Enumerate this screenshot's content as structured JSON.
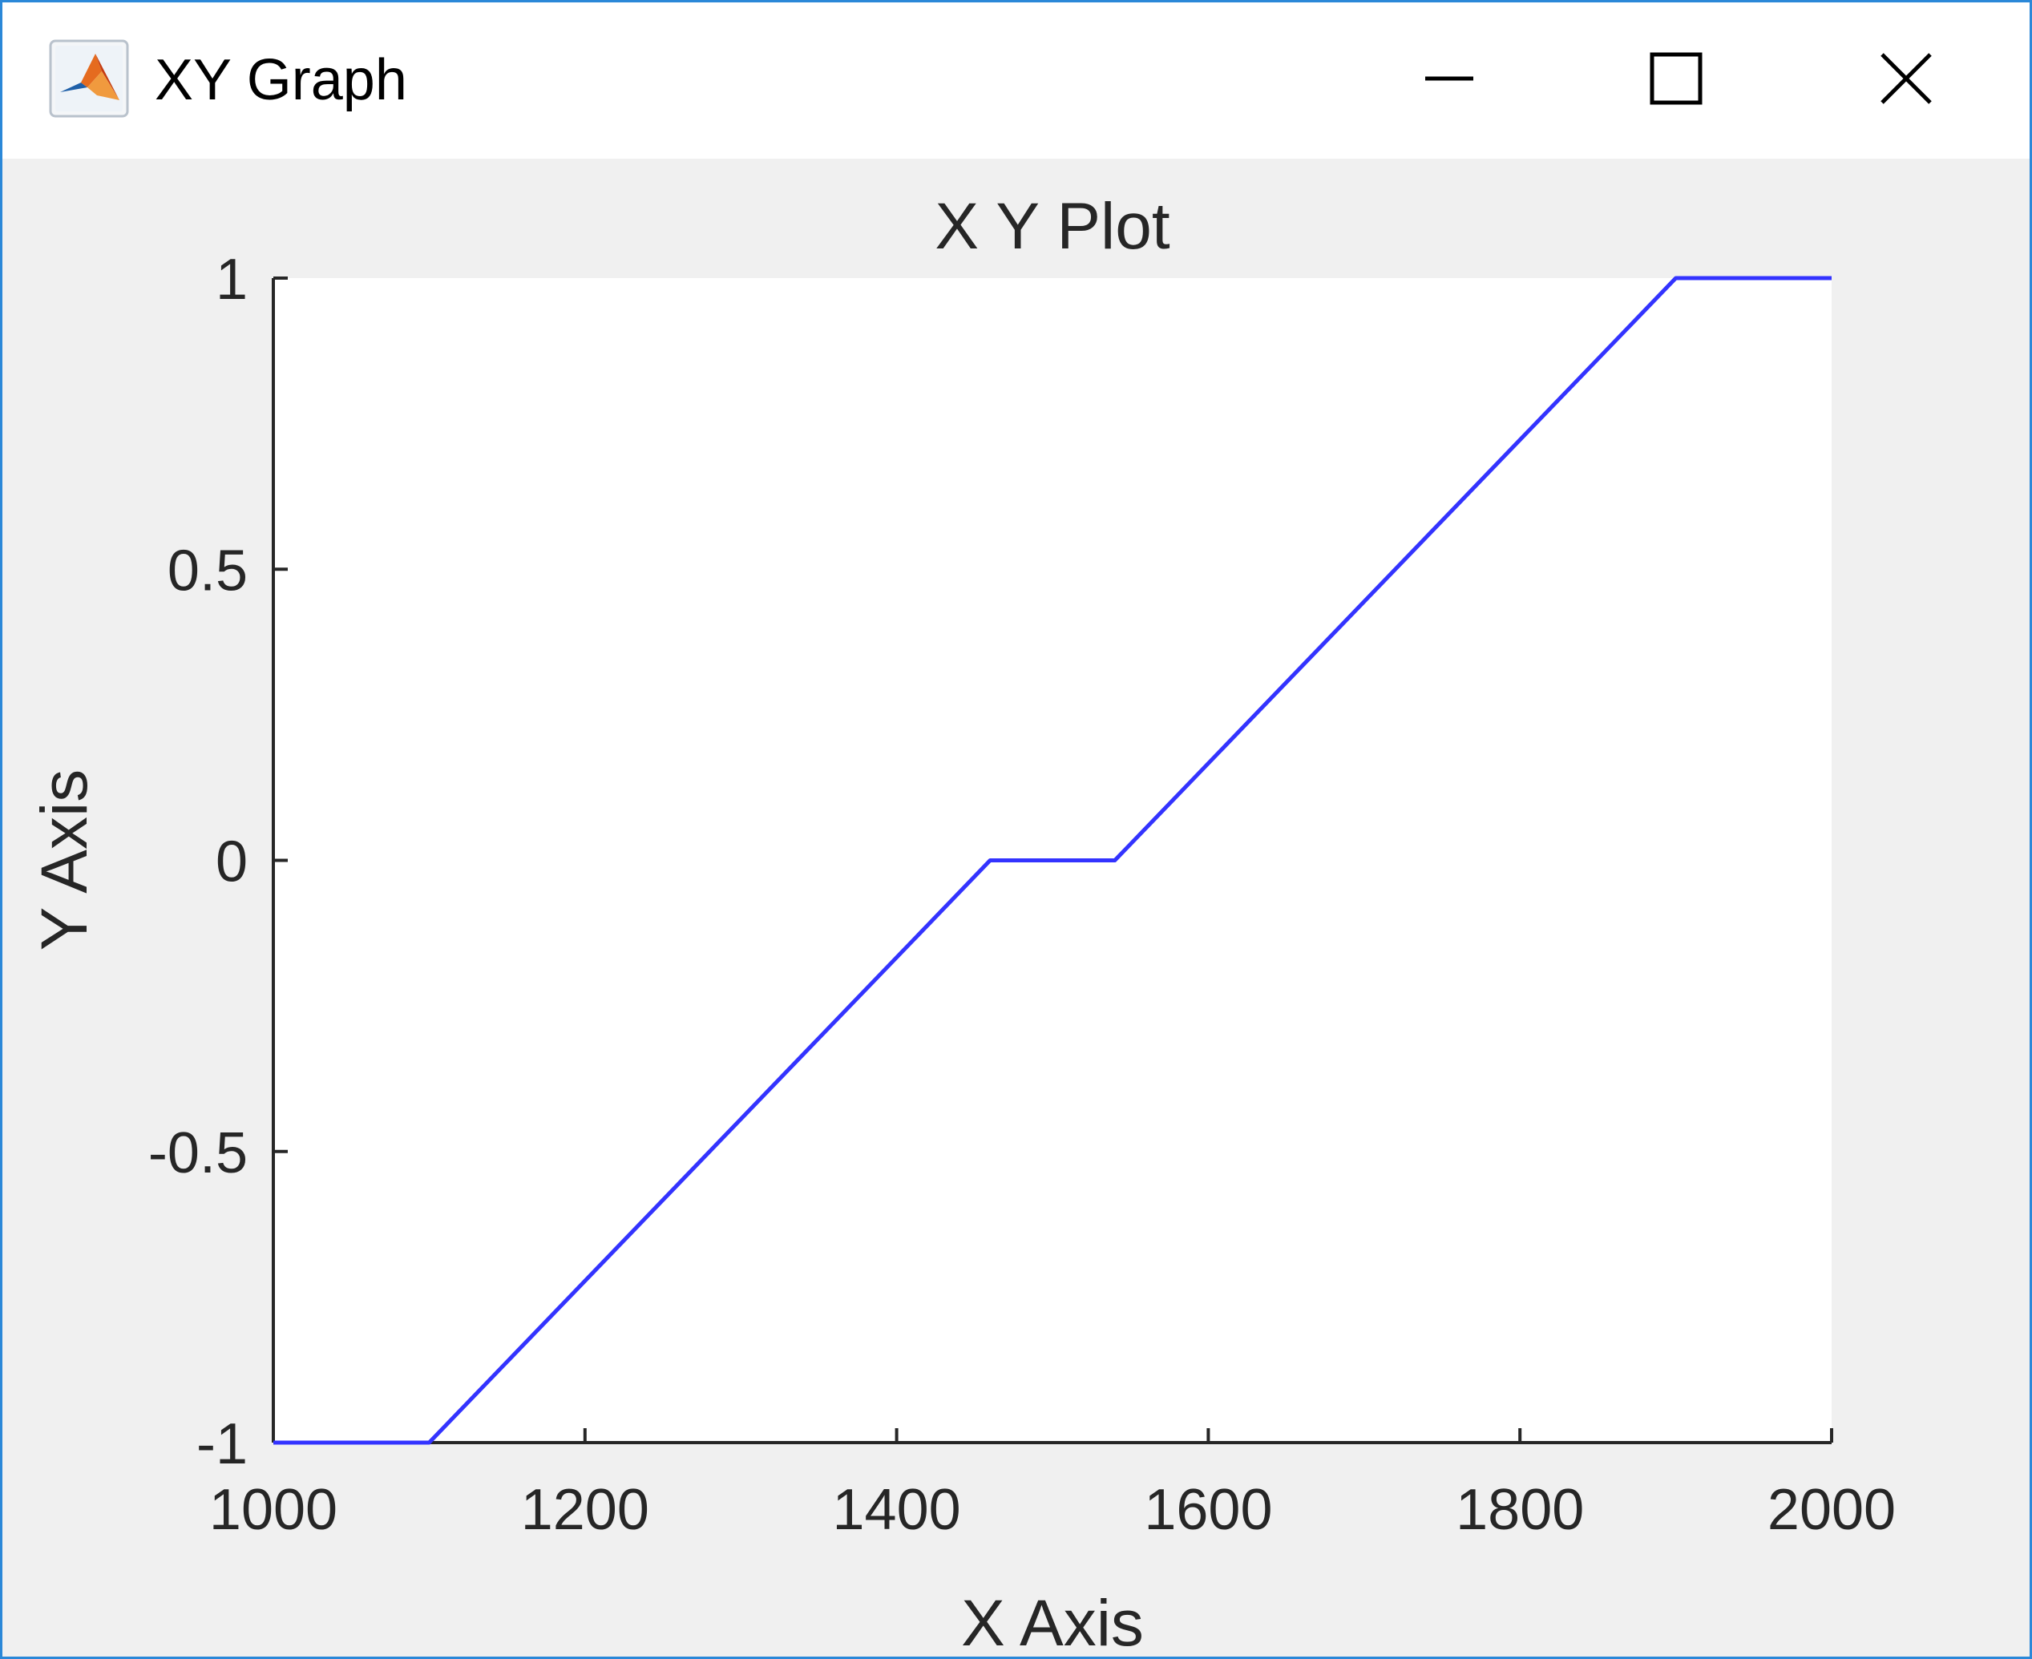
{
  "window": {
    "title": "XY Graph",
    "icon": "matlab-logo-icon",
    "controls": {
      "minimize_icon": "minimize-icon",
      "maximize_icon": "maximize-icon",
      "close_icon": "close-icon"
    }
  },
  "colors": {
    "line": "#3333ff",
    "axes_background": "#ffffff",
    "figure_background": "#f0f0f0",
    "window_border": "#2b88d8"
  },
  "chart_data": {
    "type": "line",
    "title": "X Y Plot",
    "xlabel": "X Axis",
    "ylabel": "Y Axis",
    "xlim": [
      1000,
      2000
    ],
    "ylim": [
      -1,
      1
    ],
    "xticks": [
      1000,
      1200,
      1400,
      1600,
      1800,
      2000
    ],
    "xtick_labels": [
      "1000",
      "1200",
      "1400",
      "1600",
      "1800",
      "2000"
    ],
    "yticks": [
      -1,
      -0.5,
      0,
      0.5,
      1
    ],
    "ytick_labels": [
      "-1",
      "-0.5",
      "0",
      "0.5",
      "1"
    ],
    "grid": false,
    "series": [
      {
        "x": [
          1000,
          1100,
          1460,
          1540,
          1900,
          2000
        ],
        "y": [
          -1,
          -1,
          0,
          0,
          1,
          1
        ]
      }
    ]
  }
}
